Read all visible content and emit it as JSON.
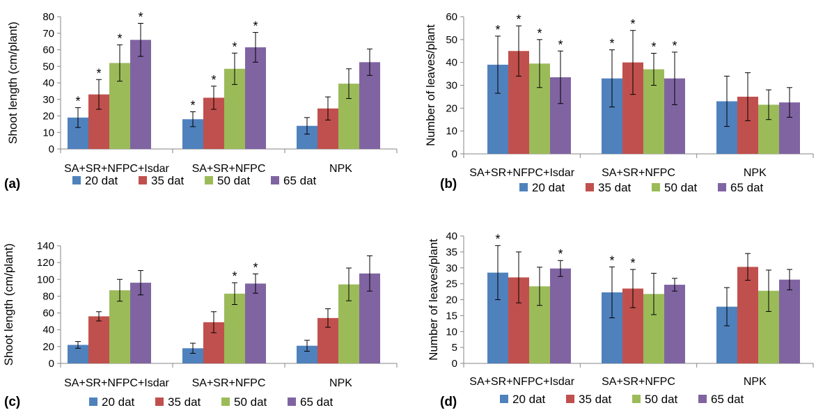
{
  "colors": {
    "series": [
      "#4F81BD",
      "#C0504D",
      "#9BBB59",
      "#8064A2"
    ]
  },
  "chart_data": [
    {
      "type": "bar",
      "panel_label": "(a)",
      "ylabel": "Shoot length (cm/plant)",
      "ylim": [
        0,
        80
      ],
      "yticks": [
        "0",
        "10",
        "20",
        "30",
        "40",
        "50",
        "60",
        "70",
        "80"
      ],
      "categories": [
        "SA+SR+NFPC+Isdar",
        "SA+SR+NFPC",
        "NPK"
      ],
      "legend_placement": "bottom",
      "series": [
        {
          "name": "20 dat",
          "values": [
            19,
            18,
            14
          ],
          "errors": [
            6,
            4.5,
            5
          ],
          "stars": [
            true,
            true,
            false
          ]
        },
        {
          "name": "35 dat",
          "values": [
            33,
            31,
            24.5
          ],
          "errors": [
            9,
            7,
            7
          ],
          "stars": [
            true,
            true,
            false
          ]
        },
        {
          "name": "50 dat",
          "values": [
            52,
            48.5,
            39.5
          ],
          "errors": [
            11,
            9.5,
            9
          ],
          "stars": [
            true,
            true,
            false
          ]
        },
        {
          "name": "65 dat",
          "values": [
            66,
            61.5,
            52.5
          ],
          "errors": [
            10,
            9,
            8
          ],
          "stars": [
            true,
            true,
            false
          ]
        }
      ],
      "star_symbol": "*"
    },
    {
      "type": "bar",
      "panel_label": "(b)",
      "ylabel": "Number of leaves/plant",
      "ylim": [
        0,
        60
      ],
      "yticks": [
        "0",
        "10",
        "20",
        "30",
        "40",
        "50",
        "60"
      ],
      "categories": [
        "SA+SR+NFPC+Isdar",
        "SA+SR+NFPC",
        "NPK"
      ],
      "legend_placement": "bottom",
      "series": [
        {
          "name": "20 dat",
          "values": [
            39,
            33,
            23
          ],
          "errors": [
            12.5,
            12.5,
            11
          ],
          "stars": [
            true,
            true,
            false
          ]
        },
        {
          "name": "35 dat",
          "values": [
            45,
            40,
            25
          ],
          "errors": [
            11,
            14,
            10.5
          ],
          "stars": [
            true,
            true,
            false
          ]
        },
        {
          "name": "50 dat",
          "values": [
            39.5,
            37,
            21.5
          ],
          "errors": [
            10.5,
            7,
            6.5
          ],
          "stars": [
            true,
            true,
            false
          ]
        },
        {
          "name": "65 dat",
          "values": [
            33.5,
            33,
            22.5
          ],
          "errors": [
            11.5,
            11.5,
            6.5
          ],
          "stars": [
            true,
            true,
            false
          ]
        }
      ],
      "star_symbol": "*"
    },
    {
      "type": "bar",
      "panel_label": "(c)",
      "ylabel": "Shoot length (cm/plant)",
      "ylim": [
        0,
        140
      ],
      "yticks": [
        "0",
        "20",
        "40",
        "60",
        "80",
        "100",
        "120",
        "140"
      ],
      "categories": [
        "SA+SR+NFPC+Isdar",
        "SA+SR+NFPC",
        "NPK"
      ],
      "legend_placement": "bottom",
      "series": [
        {
          "name": "20 dat",
          "values": [
            22,
            18,
            21
          ],
          "errors": [
            4,
            6,
            6.5
          ],
          "stars": [
            false,
            false,
            false
          ]
        },
        {
          "name": "35 dat",
          "values": [
            56,
            49,
            54
          ],
          "errors": [
            5.5,
            12.5,
            11
          ],
          "stars": [
            false,
            false,
            false
          ]
        },
        {
          "name": "50 dat",
          "values": [
            87,
            83,
            94
          ],
          "errors": [
            13,
            13,
            19.5
          ],
          "stars": [
            false,
            true,
            false
          ]
        },
        {
          "name": "65 dat",
          "values": [
            96,
            95,
            107
          ],
          "errors": [
            14.5,
            11.5,
            21
          ],
          "stars": [
            false,
            true,
            false
          ]
        }
      ],
      "star_symbol": "*"
    },
    {
      "type": "bar",
      "panel_label": "(d)",
      "ylabel": "Number of leaves/plant",
      "ylim": [
        0,
        40
      ],
      "yticks": [
        "0",
        "5",
        "10",
        "15",
        "20",
        "25",
        "30",
        "35",
        "40"
      ],
      "categories": [
        "SA+SR+NFPC+Isdar",
        "SA+SR+NFPC",
        "NPK"
      ],
      "legend_placement": "bottom",
      "series": [
        {
          "name": "20 dat",
          "values": [
            28.5,
            22.3,
            17.8
          ],
          "errors": [
            8.5,
            8,
            6
          ],
          "stars": [
            true,
            true,
            false
          ]
        },
        {
          "name": "35 dat",
          "values": [
            27,
            23.5,
            30.3
          ],
          "errors": [
            8,
            6,
            4.2
          ],
          "stars": [
            false,
            true,
            false
          ]
        },
        {
          "name": "50 dat",
          "values": [
            24.2,
            21.8,
            22.8
          ],
          "errors": [
            6,
            6.5,
            6.5
          ],
          "stars": [
            false,
            false,
            false
          ]
        },
        {
          "name": "65 dat",
          "values": [
            29.8,
            24.7,
            26.3
          ],
          "errors": [
            2.5,
            2,
            3.2
          ],
          "stars": [
            true,
            false,
            false
          ]
        }
      ],
      "star_symbol": "*"
    }
  ]
}
